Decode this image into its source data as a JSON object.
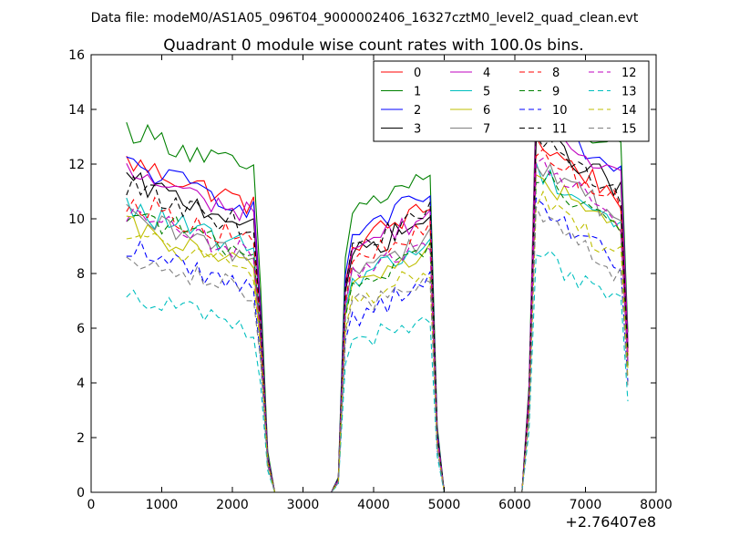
{
  "header": {
    "data_file": "Data file: modeM0/AS1A05_096T04_9000002406_16327cztM0_level2_quad_clean.evt"
  },
  "chart_data": {
    "type": "line",
    "title": "Quadrant 0 module wise count rates with 100.0s bins.",
    "xlabel": "",
    "ylabel": "",
    "x_offset_label": "+2.76407e8",
    "xlim": [
      0,
      8000
    ],
    "ylim": [
      0,
      16
    ],
    "xticks": [
      "0",
      "1000",
      "2000",
      "3000",
      "4000",
      "5000",
      "6000",
      "7000",
      "8000"
    ],
    "yticks": [
      "0",
      "2",
      "4",
      "6",
      "8",
      "10",
      "12",
      "14",
      "16"
    ],
    "grid": false,
    "legend_position": "top-right",
    "legend_columns": 4,
    "segments": [
      {
        "x_start": 500,
        "x_end": 2300
      },
      {
        "x_start": 3600,
        "x_end": 4800
      },
      {
        "x_start": 6200,
        "x_end": 7600
      }
    ],
    "x": [
      500,
      600,
      700,
      800,
      900,
      1000,
      1100,
      1200,
      1300,
      1400,
      1500,
      1600,
      1700,
      1800,
      1900,
      2000,
      2100,
      2200,
      2300,
      2400,
      2500,
      2600,
      2700,
      2800,
      2900,
      3000,
      3100,
      3200,
      3300,
      3400,
      3500,
      3600,
      3700,
      3800,
      3900,
      4000,
      4100,
      4200,
      4300,
      4400,
      4500,
      4600,
      4700,
      4800,
      4900,
      5000,
      5100,
      5200,
      5300,
      5400,
      5500,
      5600,
      5700,
      5800,
      5900,
      6000,
      6100,
      6200,
      6300,
      6400,
      6500,
      6600,
      6700,
      6800,
      6900,
      7000,
      7100,
      7200,
      7300,
      7400,
      7500,
      7600
    ],
    "series": [
      {
        "name": "0",
        "color": "#ff0000",
        "dash": "solid",
        "levels": [
          11.3,
          9.8,
          11.4
        ]
      },
      {
        "name": "1",
        "color": "#008000",
        "dash": "solid",
        "levels": [
          12.5,
          11.0,
          13.0
        ]
      },
      {
        "name": "2",
        "color": "#0000ff",
        "dash": "solid",
        "levels": [
          11.2,
          10.2,
          12.2
        ]
      },
      {
        "name": "3",
        "color": "#000000",
        "dash": "solid",
        "levels": [
          10.6,
          9.4,
          11.7
        ]
      },
      {
        "name": "4",
        "color": "#bf00bf",
        "dash": "solid",
        "levels": [
          10.9,
          9.6,
          12.2
        ]
      },
      {
        "name": "5",
        "color": "#00bfbf",
        "dash": "solid",
        "levels": [
          9.6,
          8.5,
          10.4
        ]
      },
      {
        "name": "6",
        "color": "#bfbf00",
        "dash": "solid",
        "levels": [
          8.9,
          8.3,
          10.1
        ]
      },
      {
        "name": "7",
        "color": "#808080",
        "dash": "solid",
        "levels": [
          9.3,
          8.8,
          10.6
        ]
      },
      {
        "name": "8",
        "color": "#ff0000",
        "dash": "dashed",
        "levels": [
          9.9,
          9.0,
          11.1
        ]
      },
      {
        "name": "9",
        "color": "#008000",
        "dash": "dashed",
        "levels": [
          9.5,
          8.2,
          10.3
        ]
      },
      {
        "name": "10",
        "color": "#0000ff",
        "dash": "dashed",
        "levels": [
          8.2,
          7.1,
          9.0
        ]
      },
      {
        "name": "11",
        "color": "#000000",
        "dash": "dashed",
        "levels": [
          10.4,
          9.6,
          11.5
        ]
      },
      {
        "name": "12",
        "color": "#bf00bf",
        "dash": "dashed",
        "levels": [
          9.4,
          8.7,
          10.6
        ]
      },
      {
        "name": "13",
        "color": "#00bfbf",
        "dash": "dashed",
        "levels": [
          6.6,
          6.0,
          7.4
        ]
      },
      {
        "name": "14",
        "color": "#bfbf00",
        "dash": "dashed",
        "levels": [
          8.7,
          7.6,
          9.3
        ]
      },
      {
        "name": "15",
        "color": "#808080",
        "dash": "dashed",
        "levels": [
          8.0,
          7.4,
          8.6
        ]
      }
    ]
  }
}
